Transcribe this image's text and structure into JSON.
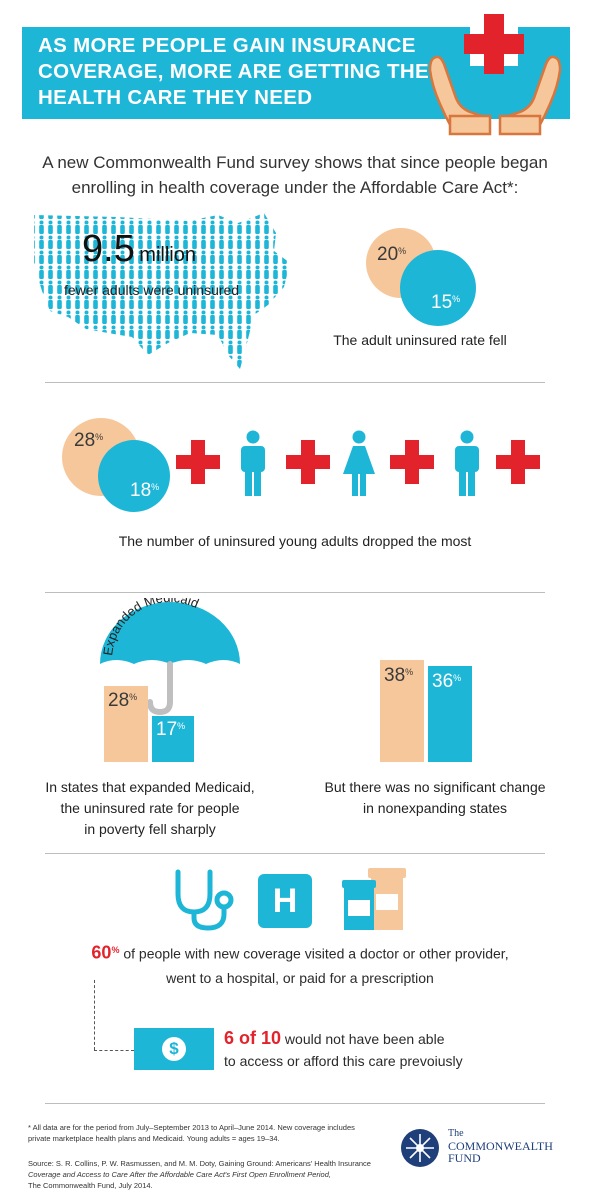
{
  "header": {
    "title": "AS MORE PEOPLE GAIN INSURANCE COVERAGE, MORE ARE GETTING THE HEALTH CARE THEY NEED",
    "icon": "hands-holding-red-cross-icon",
    "colors": {
      "banner": "#1db6d7",
      "cross": "#e3232c",
      "hands": "#f6c79a"
    }
  },
  "intro": "A new Commonwealth Fund survey shows that since people began enrolling in health coverage under the Affordable Care Act*:",
  "section1": {
    "map_number": "9.5",
    "map_unit": "million",
    "map_caption": "fewer adults were uninsured",
    "before": "20",
    "after": "15",
    "caption": "The adult uninsured rate fell"
  },
  "section2": {
    "before": "28",
    "after": "18",
    "caption": "The number of uninsured young adults dropped the most"
  },
  "section3": {
    "umbrella_label": "Expanded Medicaid",
    "left_before": "28",
    "left_after": "17",
    "left_caption": [
      "In states that expanded Medicaid,",
      "the uninsured rate for people",
      "in poverty fell sharply"
    ],
    "right_before": "38",
    "right_after": "36",
    "right_caption": [
      "But there was no significant change",
      "in nonexpanding states"
    ]
  },
  "section4": {
    "stat": "60",
    "stat_text_1": "of people with new coverage visited a doctor or other provider,",
    "stat_text_2": "went to a hospital, or paid for a prescription",
    "hospital_letter": "H",
    "ratio": "6 of 10",
    "ratio_text_1": "would not have been able",
    "ratio_text_2": "to access or afford this care prevoiusly"
  },
  "footer": {
    "note_1": "* All data are for the period from July–September 2013 to April–June 2014. New coverage includes",
    "note_2": "private marketplace health plans and Medicaid. Young adults = ages 19–34.",
    "source_1": "Source: S. R. Collins, P. W. Rasmussen, and M. M. Doty, Gaining Ground: Americans' Health Insurance",
    "source_2": "Coverage and Access to Care After the Affordable Care Act's First Open Enrollment Period,",
    "source_3": "The Commonwealth Fund, July 2014.",
    "logo_line1": "The",
    "logo_line2": "COMMONWEALTH",
    "logo_line3": "FUND"
  },
  "percent_sign": "%"
}
